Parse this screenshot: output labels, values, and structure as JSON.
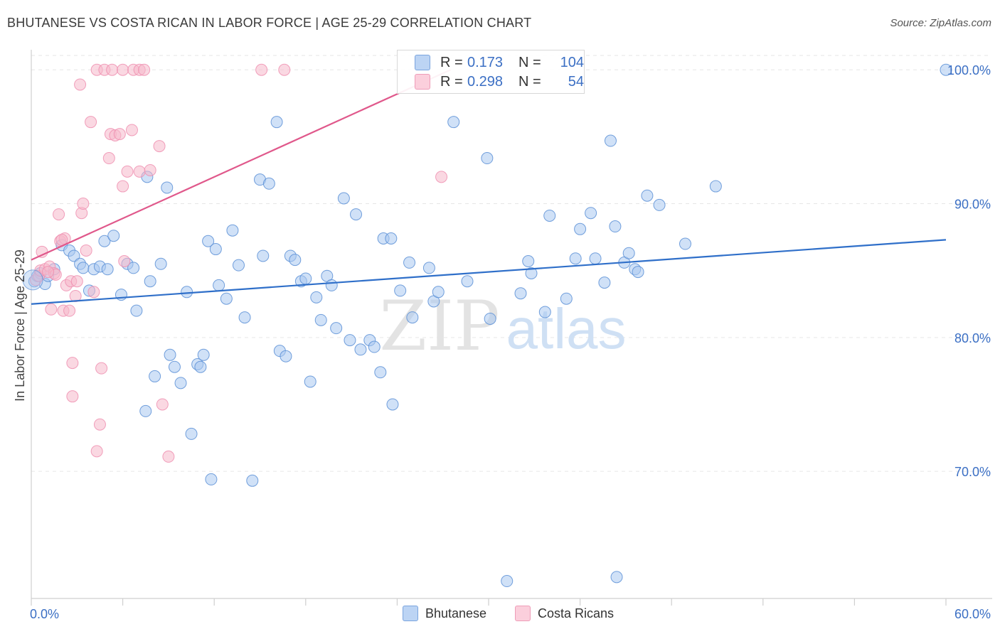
{
  "title": "BHUTANESE VS COSTA RICAN IN LABOR FORCE | AGE 25-29 CORRELATION CHART",
  "source": "Source: ZipAtlas.com",
  "watermark": {
    "zip": "ZIP",
    "atlas": "atlas"
  },
  "legend_top": {
    "rows": [
      {
        "r_label": "R =",
        "r_value": "0.173",
        "n_label": "N =",
        "n_value": "104",
        "color": "#a9c8f0"
      },
      {
        "r_label": "R =",
        "r_value": "0.298",
        "n_label": "N =",
        "n_value": "54",
        "color": "#f6b8cb"
      }
    ]
  },
  "legend_bottom": [
    {
      "label": "Bhutanese",
      "color": "#a9c8f0"
    },
    {
      "label": "Costa Ricans",
      "color": "#f6b8cb"
    }
  ],
  "chart_data": {
    "type": "scatter",
    "title": "BHUTANESE VS COSTA RICAN IN LABOR FORCE | AGE 25-29 CORRELATION CHART",
    "xlabel": "",
    "ylabel": "In Labor Force | Age 25-29",
    "xlim": [
      0,
      60
    ],
    "ylim": [
      60.5,
      101.5
    ],
    "x_tick_labels": [
      "0.0%",
      "60.0%"
    ],
    "y_ticks": [
      70,
      80,
      90,
      100
    ],
    "y_tick_labels": [
      "70.0%",
      "80.0%",
      "90.0%",
      "100.0%"
    ],
    "grid": true,
    "legend_position": "top-center",
    "series": [
      {
        "name": "Bhutanese",
        "color": "#5b8fd6",
        "fill": "#a9c8f0",
        "trend": {
          "x": [
            0,
            60
          ],
          "y": [
            82.5,
            87.3
          ],
          "color": "#2f6fc9"
        },
        "points": [
          [
            0.2,
            84.2
          ],
          [
            0.4,
            84.6
          ],
          [
            0.6,
            84.8
          ],
          [
            0.9,
            84.0
          ],
          [
            1.1,
            84.6
          ],
          [
            1.5,
            85.1
          ],
          [
            2.0,
            86.9
          ],
          [
            2.5,
            86.5
          ],
          [
            2.8,
            86.1
          ],
          [
            3.2,
            85.5
          ],
          [
            3.4,
            85.2
          ],
          [
            3.8,
            83.5
          ],
          [
            4.1,
            85.1
          ],
          [
            4.5,
            85.3
          ],
          [
            4.8,
            87.2
          ],
          [
            5.0,
            85.1
          ],
          [
            5.4,
            87.6
          ],
          [
            5.9,
            83.2
          ],
          [
            6.3,
            85.5
          ],
          [
            6.7,
            85.2
          ],
          [
            6.9,
            82.0
          ],
          [
            7.5,
            74.5
          ],
          [
            7.6,
            92.0
          ],
          [
            7.8,
            84.2
          ],
          [
            8.1,
            77.1
          ],
          [
            8.5,
            85.5
          ],
          [
            8.9,
            91.2
          ],
          [
            9.1,
            78.7
          ],
          [
            9.4,
            77.8
          ],
          [
            9.8,
            76.6
          ],
          [
            10.2,
            83.4
          ],
          [
            10.5,
            72.8
          ],
          [
            10.9,
            78.0
          ],
          [
            11.1,
            77.8
          ],
          [
            11.3,
            78.7
          ],
          [
            11.6,
            87.2
          ],
          [
            11.8,
            69.4
          ],
          [
            12.1,
            86.6
          ],
          [
            12.3,
            83.9
          ],
          [
            12.8,
            82.9
          ],
          [
            13.2,
            88.0
          ],
          [
            13.6,
            85.4
          ],
          [
            14.0,
            81.5
          ],
          [
            14.5,
            69.3
          ],
          [
            15.0,
            91.8
          ],
          [
            15.2,
            86.1
          ],
          [
            15.6,
            91.5
          ],
          [
            16.1,
            96.1
          ],
          [
            16.3,
            79.0
          ],
          [
            16.7,
            78.6
          ],
          [
            17.0,
            86.1
          ],
          [
            17.3,
            85.8
          ],
          [
            17.7,
            84.2
          ],
          [
            18.0,
            84.4
          ],
          [
            18.3,
            76.7
          ],
          [
            18.7,
            83.0
          ],
          [
            19.0,
            81.3
          ],
          [
            19.4,
            84.6
          ],
          [
            19.7,
            83.9
          ],
          [
            20.0,
            80.7
          ],
          [
            20.5,
            90.4
          ],
          [
            20.9,
            79.8
          ],
          [
            21.3,
            89.2
          ],
          [
            21.6,
            79.1
          ],
          [
            22.2,
            79.8
          ],
          [
            22.5,
            79.3
          ],
          [
            22.9,
            77.4
          ],
          [
            23.1,
            87.4
          ],
          [
            23.6,
            87.4
          ],
          [
            23.7,
            75.0
          ],
          [
            24.2,
            83.5
          ],
          [
            24.8,
            85.6
          ],
          [
            25.0,
            81.5
          ],
          [
            26.1,
            85.2
          ],
          [
            26.4,
            82.7
          ],
          [
            26.7,
            83.4
          ],
          [
            27.7,
            96.1
          ],
          [
            28.6,
            84.2
          ],
          [
            29.9,
            93.4
          ],
          [
            30.1,
            81.4
          ],
          [
            31.2,
            61.8
          ],
          [
            32.1,
            83.3
          ],
          [
            32.6,
            85.7
          ],
          [
            32.8,
            84.8
          ],
          [
            33.7,
            81.9
          ],
          [
            34.0,
            89.1
          ],
          [
            35.1,
            82.9
          ],
          [
            35.7,
            85.9
          ],
          [
            36.0,
            88.1
          ],
          [
            36.7,
            89.3
          ],
          [
            37.0,
            85.9
          ],
          [
            37.6,
            84.1
          ],
          [
            38.0,
            94.7
          ],
          [
            38.3,
            88.3
          ],
          [
            38.9,
            85.6
          ],
          [
            39.2,
            86.3
          ],
          [
            39.6,
            85.1
          ],
          [
            39.8,
            84.9
          ],
          [
            40.4,
            90.6
          ],
          [
            41.2,
            89.9
          ],
          [
            42.9,
            87.0
          ],
          [
            44.9,
            91.3
          ],
          [
            38.4,
            62.1
          ],
          [
            60.0,
            100.0
          ]
        ]
      },
      {
        "name": "Costa Ricans",
        "color": "#ee8fb0",
        "fill": "#f6b8cb",
        "trend": {
          "x": [
            0,
            27.5
          ],
          "y": [
            85.8,
            100.0
          ],
          "color": "#e0588b"
        },
        "points": [
          [
            0.3,
            84.3
          ],
          [
            0.5,
            84.6
          ],
          [
            0.6,
            85.0
          ],
          [
            0.7,
            86.4
          ],
          [
            0.9,
            85.1
          ],
          [
            1.2,
            85.3
          ],
          [
            1.3,
            82.1
          ],
          [
            1.5,
            84.8
          ],
          [
            1.6,
            84.7
          ],
          [
            1.8,
            89.2
          ],
          [
            1.9,
            87.2
          ],
          [
            2.1,
            82.0
          ],
          [
            2.2,
            87.4
          ],
          [
            2.3,
            83.9
          ],
          [
            2.5,
            82.0
          ],
          [
            2.6,
            84.2
          ],
          [
            2.7,
            75.6
          ],
          [
            2.7,
            78.1
          ],
          [
            2.9,
            83.1
          ],
          [
            3.0,
            84.2
          ],
          [
            3.3,
            89.3
          ],
          [
            3.4,
            90.0
          ],
          [
            3.6,
            86.5
          ],
          [
            3.9,
            96.1
          ],
          [
            4.1,
            83.4
          ],
          [
            4.3,
            71.5
          ],
          [
            4.5,
            73.5
          ],
          [
            4.6,
            77.7
          ],
          [
            5.1,
            93.4
          ],
          [
            5.2,
            95.2
          ],
          [
            5.5,
            95.1
          ],
          [
            5.8,
            95.2
          ],
          [
            6.0,
            91.3
          ],
          [
            6.1,
            85.7
          ],
          [
            6.3,
            92.4
          ],
          [
            6.6,
            95.5
          ],
          [
            7.1,
            92.4
          ],
          [
            7.8,
            92.5
          ],
          [
            8.4,
            94.3
          ],
          [
            8.6,
            75.0
          ],
          [
            9.0,
            71.1
          ],
          [
            3.2,
            98.9
          ],
          [
            4.3,
            100.0
          ],
          [
            4.8,
            100.0
          ],
          [
            5.3,
            100.0
          ],
          [
            6.0,
            100.0
          ],
          [
            6.7,
            100.0
          ],
          [
            7.1,
            100.0
          ],
          [
            7.4,
            100.0
          ],
          [
            15.1,
            100.0
          ],
          [
            16.6,
            100.0
          ],
          [
            26.9,
            92.0
          ],
          [
            2.0,
            87.3
          ],
          [
            1.1,
            84.9
          ]
        ]
      }
    ]
  }
}
